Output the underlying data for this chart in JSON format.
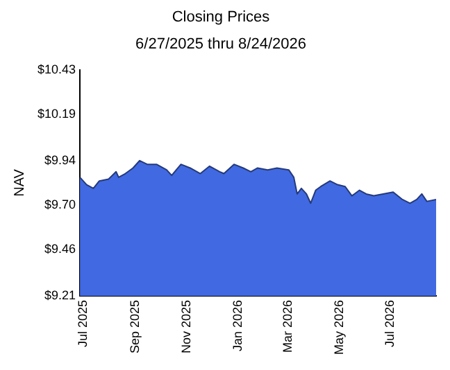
{
  "chart_data": {
    "type": "area",
    "title": "Closing Prices",
    "subtitle": "6/27/2025 thru 8/24/2026",
    "ylabel": "NAV",
    "x": [
      "2025-06-27",
      "2025-07-05",
      "2025-07-13",
      "2025-07-20",
      "2025-07-31",
      "2025-08-09",
      "2025-08-12",
      "2025-08-20",
      "2025-08-29",
      "2025-09-06",
      "2025-09-15",
      "2025-09-26",
      "2025-10-08",
      "2025-10-14",
      "2025-10-25",
      "2025-11-05",
      "2025-11-17",
      "2025-11-28",
      "2025-12-10",
      "2025-12-15",
      "2025-12-27",
      "2026-01-07",
      "2026-01-16",
      "2026-01-24",
      "2026-02-05",
      "2026-02-16",
      "2026-03-02",
      "2026-03-08",
      "2026-03-12",
      "2026-03-17",
      "2026-03-23",
      "2026-03-28",
      "2026-04-03",
      "2026-04-09",
      "2026-04-20",
      "2026-04-29",
      "2026-05-08",
      "2026-05-16",
      "2026-05-25",
      "2026-06-02",
      "2026-06-11",
      "2026-06-22",
      "2026-07-04",
      "2026-07-15",
      "2026-07-24",
      "2026-08-01",
      "2026-08-07",
      "2026-08-13",
      "2026-08-24"
    ],
    "series": [
      {
        "color": "#4169e1",
        "values": [
          9.85,
          9.81,
          9.79,
          9.83,
          9.84,
          9.88,
          9.85,
          9.87,
          9.9,
          9.94,
          9.92,
          9.92,
          9.89,
          9.86,
          9.92,
          9.9,
          9.87,
          9.91,
          9.88,
          9.87,
          9.92,
          9.9,
          9.88,
          9.9,
          9.89,
          9.9,
          9.89,
          9.85,
          9.76,
          9.79,
          9.76,
          9.71,
          9.78,
          9.8,
          9.83,
          9.81,
          9.8,
          9.75,
          9.78,
          9.76,
          9.75,
          9.76,
          9.77,
          9.73,
          9.71,
          9.73,
          9.76,
          9.72,
          9.73
        ]
      }
    ],
    "xlim": [
      "2025-06-27",
      "2026-08-24"
    ],
    "xticks": [
      {
        "value": "2025-07-01",
        "label": "Jul 2025"
      },
      {
        "value": "2025-09-01",
        "label": "Sep 2025"
      },
      {
        "value": "2025-11-01",
        "label": "Nov 2025"
      },
      {
        "value": "2026-01-01",
        "label": "Jan 2026"
      },
      {
        "value": "2026-03-01",
        "label": "Mar 2026"
      },
      {
        "value": "2026-05-01",
        "label": "May 2026"
      },
      {
        "value": "2026-07-01",
        "label": "Jul 2026"
      }
    ],
    "ylim": [
      9.21,
      10.43
    ],
    "yticks": [
      {
        "value": 9.21,
        "label": "$9.21"
      },
      {
        "value": 9.46,
        "label": "$9.46"
      },
      {
        "value": 9.7,
        "label": "$9.70"
      },
      {
        "value": 9.94,
        "label": "$9.94"
      },
      {
        "value": 10.19,
        "label": "$10.19"
      },
      {
        "value": 10.43,
        "label": "$10.43"
      }
    ],
    "grid": false,
    "legend": false,
    "marker": "none"
  }
}
